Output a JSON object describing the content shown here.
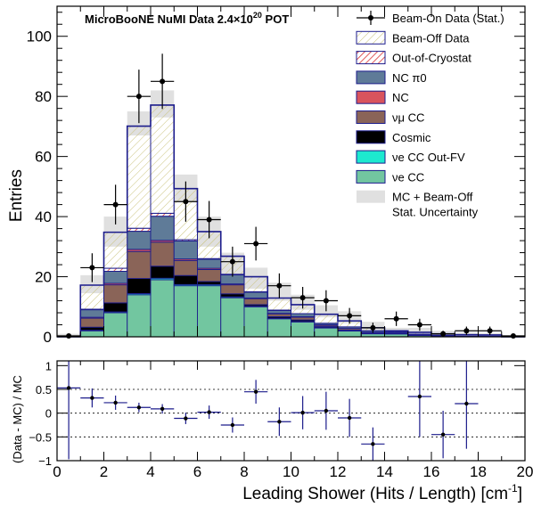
{
  "chart_data": [
    {
      "type": "bar",
      "panel": "main",
      "title": "MicroBooNE NuMI Data 2.4×10^20 POT",
      "title_parts": {
        "prefix": "MicroBooNE NuMI Data 2.4×10",
        "exp": "20",
        "suffix": " POT"
      },
      "ylabel": "Entries",
      "ylim": [
        0,
        110
      ],
      "xlim": [
        0,
        20
      ],
      "yticks": [
        "0",
        "20",
        "40",
        "60",
        "80",
        "100"
      ],
      "bin_edges": [
        0,
        1,
        2,
        3,
        4,
        5,
        6,
        7,
        8,
        9,
        10,
        11,
        12,
        13,
        14,
        15,
        16,
        17,
        18,
        19,
        20
      ],
      "stack_series": [
        {
          "name": "νe CC",
          "color": "#72c6a0",
          "values": [
            0,
            2,
            8,
            14,
            19,
            17,
            17,
            13,
            10,
            6,
            5,
            3,
            2,
            1,
            1,
            0.5,
            0.3,
            0.2,
            0.2,
            0
          ]
        },
        {
          "name": "νe CC Out-FV",
          "color": "#1de9cf",
          "values": [
            0,
            0.2,
            0.3,
            0.4,
            0.5,
            0.4,
            0.4,
            0.3,
            0.2,
            0.2,
            0.1,
            0.1,
            0.1,
            0,
            0,
            0,
            0,
            0,
            0,
            0
          ]
        },
        {
          "name": "Cosmic",
          "color": "#000000",
          "values": [
            0,
            1,
            3,
            5,
            4,
            3,
            1,
            1,
            0.5,
            0.5,
            0.5,
            0.3,
            0.2,
            0.2,
            0.1,
            0.1,
            0,
            0,
            0,
            0
          ]
        },
        {
          "name": "νμ CC",
          "color": "#8a6458",
          "values": [
            0,
            3,
            6,
            9,
            8,
            5,
            4,
            3,
            2,
            1,
            1,
            0.5,
            0.5,
            0.3,
            0.2,
            0.1,
            0.1,
            0,
            0,
            0
          ]
        },
        {
          "name": "NC",
          "color": "#d9545d",
          "values": [
            0,
            0.3,
            0.5,
            0.7,
            0.6,
            0.5,
            0.4,
            0.3,
            0.2,
            0.1,
            0.1,
            0.1,
            0,
            0,
            0,
            0,
            0,
            0,
            0,
            0
          ]
        },
        {
          "name": "NC π0",
          "color": "#5f7b98",
          "values": [
            0,
            2.5,
            4,
            6,
            8,
            6,
            3,
            3,
            2,
            1,
            1,
            0.5,
            0.5,
            0.5,
            0.3,
            0.2,
            0.1,
            0,
            0,
            0
          ]
        },
        {
          "name": "Out-of-Cryostat",
          "color": "#d83030",
          "values": [
            0,
            0.2,
            1,
            1,
            1,
            0.4,
            0.2,
            0.2,
            0.1,
            0.1,
            0,
            0,
            0,
            0,
            0,
            0,
            0,
            0,
            0,
            0
          ]
        },
        {
          "name": "Beam-Off Data",
          "color": "#c9c27a",
          "values": [
            0,
            8,
            12,
            34,
            36,
            17,
            9,
            6,
            5,
            4,
            3,
            3,
            2,
            1,
            0.4,
            0.6,
            0.5,
            0.5,
            0.4,
            0
          ]
        }
      ],
      "mc_uncertainty": {
        "name": "MC + Beam-Off",
        "name_line2": "Stat. Uncertainty",
        "color": "#e0e0e0",
        "low": [
          0,
          14.5,
          30,
          67,
          73,
          45,
          30,
          20,
          16,
          12,
          9,
          6.5,
          4.5,
          2,
          0.8,
          1,
          0.5,
          0.3,
          0.2,
          0
        ],
        "high": [
          1,
          20.5,
          40,
          75,
          82,
          54,
          40,
          28,
          23,
          18,
          14,
          10.5,
          8.5,
          5,
          3,
          3,
          2,
          1.5,
          1.2,
          0.5
        ]
      },
      "data": {
        "name": "Beam-On Data (Stat.)",
        "x": [
          0.5,
          1.5,
          2.5,
          3.5,
          4.5,
          5.5,
          6.5,
          7.5,
          8.5,
          9.5,
          10.5,
          11.5,
          12.5,
          13.5,
          14.5,
          15.5,
          16.5,
          17.5,
          18.5,
          19.5
        ],
        "y": [
          0.3,
          23,
          44,
          80,
          85,
          45,
          39,
          25,
          31,
          17,
          13,
          12,
          7,
          3,
          6,
          4,
          1,
          2,
          2,
          0.3
        ],
        "yerr": [
          0.6,
          4.8,
          6.6,
          8.9,
          9.2,
          6.7,
          6.2,
          5,
          5.6,
          4.1,
          3.6,
          3.5,
          2.6,
          1.7,
          2.4,
          2,
          1,
          1.4,
          1.4,
          0.6
        ]
      }
    },
    {
      "type": "scatter",
      "panel": "ratio",
      "ylabel": "(Data - MC) / MC",
      "xlabel": "Leading Shower (Hits / Length) [cm^-1]",
      "xlabel_parts": {
        "prefix": "Leading Shower (Hits / Length) [cm",
        "exp": "-1",
        "suffix": "]"
      },
      "xlim": [
        0,
        20
      ],
      "ylim": [
        -1,
        1.1
      ],
      "yticks": [
        "−1",
        "−0.5",
        "0",
        "0.5",
        "1"
      ],
      "xticks": [
        "0",
        "2",
        "4",
        "6",
        "8",
        "10",
        "12",
        "14",
        "16",
        "18",
        "20"
      ],
      "gridlines_y": [
        -0.5,
        0,
        0.5
      ],
      "x": [
        0.5,
        1.5,
        2.5,
        3.5,
        4.5,
        5.5,
        6.5,
        7.5,
        8.5,
        9.5,
        10.5,
        11.5,
        12.5,
        13.5,
        15.5,
        16.5,
        17.5
      ],
      "y": [
        0.53,
        0.32,
        0.22,
        0.12,
        0.09,
        -0.11,
        0.02,
        -0.25,
        0.45,
        -0.18,
        0.01,
        0.05,
        -0.1,
        -0.65,
        0.35,
        -0.45,
        0.2
      ],
      "yerr": [
        1.5,
        0.2,
        0.15,
        0.1,
        0.1,
        0.12,
        0.14,
        0.16,
        0.25,
        0.3,
        0.35,
        0.4,
        0.4,
        0.35,
        0.85,
        0.5,
        0.95
      ]
    }
  ]
}
